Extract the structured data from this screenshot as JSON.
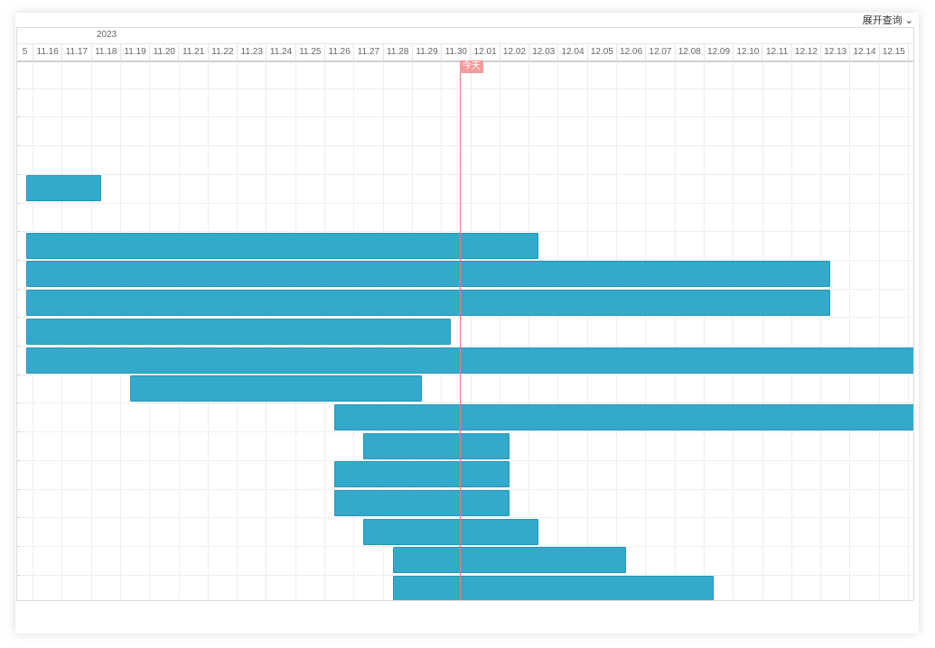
{
  "header": {
    "expand_label": "展开查询",
    "year": "2023"
  },
  "timeline": {
    "days": [
      "5",
      "11.16",
      "11.17",
      "11.18",
      "11.19",
      "11.20",
      "11.21",
      "11.22",
      "11.23",
      "11.24",
      "11.25",
      "11.26",
      "11.27",
      "11.28",
      "11.29",
      "11.30",
      "12.01",
      "12.02",
      "12.03",
      "12.04",
      "12.05",
      "12.06",
      "12.07",
      "12.08",
      "12.09",
      "12.10",
      "12.11",
      "12.12",
      "12.13",
      "12.14",
      "12.15"
    ],
    "today_label": "今天"
  },
  "rows": [
    {
      "start": 0,
      "end": 0
    },
    {
      "start": 0,
      "end": 0
    },
    {
      "start": 0,
      "end": 0
    },
    {
      "start": 0,
      "end": 0
    },
    {
      "start": -0.3,
      "end": 3.0
    },
    {
      "start": 0,
      "end": 0
    },
    {
      "start": -0.3,
      "end": 18.0
    },
    {
      "start": -0.3,
      "end": 28.0
    },
    {
      "start": -0.3,
      "end": 28.0
    },
    {
      "start": -0.3,
      "end": 15.0
    },
    {
      "start": 0.0,
      "end": 31.0
    },
    {
      "start": 4.0,
      "end": 14.0
    },
    {
      "start": 11.0,
      "end": 31.0
    },
    {
      "start": 12.0,
      "end": 17.0
    },
    {
      "start": 11.0,
      "end": 17.0
    },
    {
      "start": 11.0,
      "end": 17.0
    },
    {
      "start": 12.0,
      "end": 18.0
    },
    {
      "start": 13.0,
      "end": 21.0
    },
    {
      "start": 13.0,
      "end": 24.0
    }
  ],
  "colors": {
    "bar": "#33aacb",
    "today": "#f07a7a"
  }
}
